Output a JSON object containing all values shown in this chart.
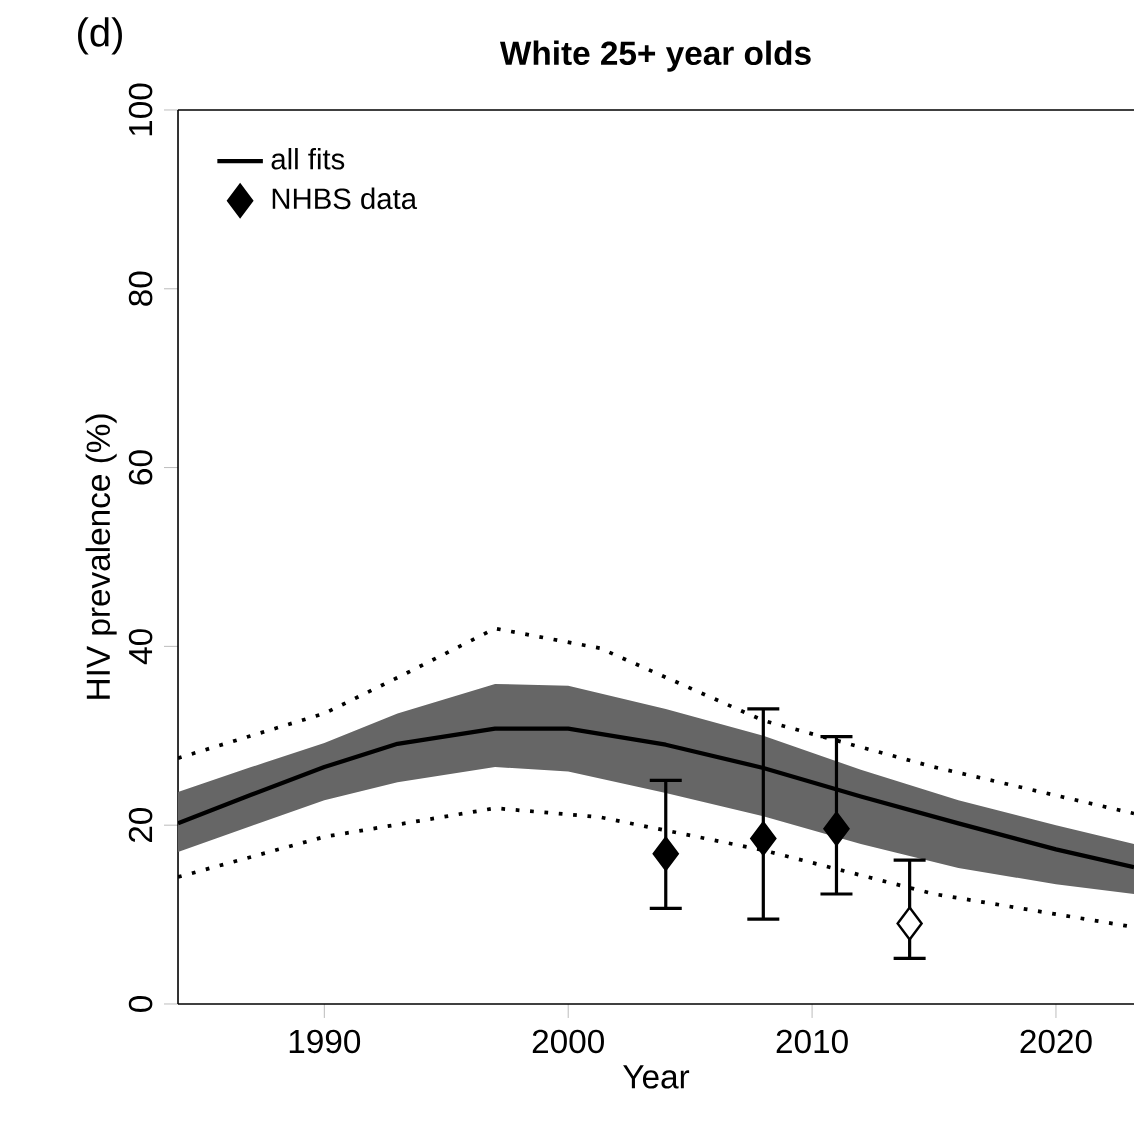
{
  "chart_data": {
    "type": "line",
    "title": "White 25+ year olds",
    "xlabel": "Year",
    "ylabel": "HIV prevalence (%)",
    "annotations": [
      "(d)"
    ],
    "xlim": [
      1984,
      2023.2
    ],
    "ylim": [
      0,
      100
    ],
    "xticks": [
      1990,
      2000,
      2010,
      2020
    ],
    "yticks": [
      0,
      20,
      40,
      60,
      80,
      100
    ],
    "legend": "top left",
    "grid": false,
    "series": [
      {
        "name": "all fits",
        "color": "#000000",
        "line_style": "solid",
        "x": [
          1984,
          1987,
          1990,
          1993,
          1997,
          2000,
          2004,
          2008,
          2012,
          2016,
          2020,
          2023.2
        ],
        "values": [
          20.2,
          23.4,
          26.5,
          29.1,
          30.8,
          30.8,
          29.0,
          26.4,
          23.2,
          20.2,
          17.3,
          15.3
        ],
        "lower": [
          17.0,
          19.9,
          22.8,
          24.8,
          26.5,
          26.0,
          23.6,
          21.0,
          17.9,
          15.2,
          13.4,
          12.3
        ],
        "upper": [
          23.7,
          26.5,
          29.2,
          32.5,
          35.8,
          35.6,
          33.0,
          30.0,
          26.2,
          22.8,
          20.0,
          17.9
        ]
      },
      {
        "color": "#000000",
        "line_style": "dotted",
        "x": [
          1984,
          1990,
          1993,
          1997,
          2001.3,
          2008,
          2015,
          2023.2
        ],
        "values": [
          27.5,
          32.5,
          36.5,
          42.0,
          39.8,
          31.7,
          26.5,
          21.3
        ]
      },
      {
        "color": "#000000",
        "line_style": "dotted",
        "x": [
          1984,
          1990,
          1997,
          2001.3,
          2008,
          2015,
          2023.2
        ],
        "values": [
          14.2,
          18.7,
          21.9,
          20.9,
          17.2,
          12.3,
          8.6
        ]
      },
      {
        "name": "NHBS data",
        "type": "scatter",
        "marker": "diamond",
        "color": "#000000",
        "x": [
          2004,
          2008,
          2011
        ],
        "values": [
          16.8,
          18.5,
          19.6
        ],
        "errors": [
          [
            10.7,
            25.0
          ],
          [
            9.5,
            33.0
          ],
          [
            12.3,
            29.9
          ]
        ]
      },
      {
        "type": "scatter",
        "marker": "diamond",
        "color": "#ffffff",
        "x": [
          2014
        ],
        "values": [
          9.0
        ],
        "errors": [
          [
            5.1,
            16.1
          ]
        ]
      }
    ]
  }
}
